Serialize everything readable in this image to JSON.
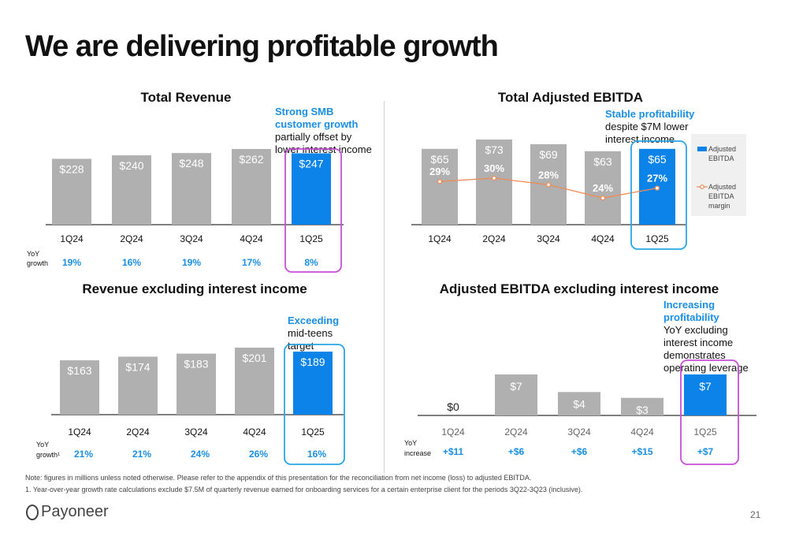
{
  "title": "We are delivering profitable growth",
  "colors": {
    "bar_gray": "#b0b0b0",
    "bar_blue": "#0b83e8",
    "highlight_blue": "#1a8fe3",
    "growth_blue": "#1a8fe3",
    "margin_line": "#f08a54",
    "frame_purple": "#c84fd8",
    "frame_blue": "#2aa6e8"
  },
  "panels": {
    "total_revenue": {
      "title": "Total Revenue",
      "callout": {
        "highlight": "Strong SMB customer growth",
        "rest": " partially offset by lower interest income"
      },
      "growth_label": [
        "YoY",
        "growth"
      ],
      "growth": [
        "19%",
        "16%",
        "19%",
        "17%",
        "8%"
      ]
    },
    "adj_ebitda": {
      "title": "Total Adjusted EBITDA",
      "callout": {
        "highlight": "Stable profitability",
        "rest": " despite $7M lower interest income"
      },
      "legend_bar": "Adjusted EBITDA",
      "legend_line": "Adjusted EBITDA margin"
    },
    "rev_ex_interest": {
      "title": "Revenue excluding interest income",
      "callout": {
        "highlight": "Exceeding",
        "rest": " mid-teens target"
      },
      "growth_label": [
        "YoY",
        "growth¹"
      ],
      "growth": [
        "21%",
        "21%",
        "24%",
        "26%",
        "16%"
      ]
    },
    "ebitda_ex_interest": {
      "title": "Adjusted EBITDA excluding interest income",
      "callout": {
        "highlight": "Increasing profitability",
        "rest": "YoY excluding interest income demonstrates operating leverage"
      },
      "growth_label": [
        "YoY",
        "increase"
      ],
      "growth": [
        "+$11",
        "+$6",
        "+$6",
        "+$15",
        "+$7"
      ]
    }
  },
  "chart_data": [
    {
      "type": "bar",
      "title": "Total Revenue",
      "categories": [
        "1Q24",
        "2Q24",
        "3Q24",
        "4Q24",
        "1Q25"
      ],
      "values": [
        228,
        240,
        248,
        262,
        247
      ],
      "labels": [
        "$228",
        "$240",
        "$248",
        "$262",
        "$247"
      ],
      "highlight_index": 4
    },
    {
      "type": "bar",
      "title": "Total Adjusted EBITDA",
      "categories": [
        "1Q24",
        "2Q24",
        "3Q24",
        "4Q24",
        "1Q25"
      ],
      "values": [
        65,
        73,
        69,
        63,
        65
      ],
      "labels": [
        "$65",
        "$73",
        "$69",
        "$63",
        "$65"
      ],
      "margin_values": [
        29,
        30,
        28,
        24,
        27
      ],
      "margin_labels": [
        "29%",
        "30%",
        "28%",
        "24%",
        "27%"
      ],
      "highlight_index": 4
    },
    {
      "type": "bar",
      "title": "Revenue excluding interest income",
      "categories": [
        "1Q24",
        "2Q24",
        "3Q24",
        "4Q24",
        "1Q25"
      ],
      "values": [
        163,
        174,
        183,
        201,
        189
      ],
      "labels": [
        "$163",
        "$174",
        "$183",
        "$201",
        "$189"
      ],
      "highlight_index": 4
    },
    {
      "type": "bar",
      "title": "Adjusted EBITDA excluding interest income",
      "categories": [
        "1Q24",
        "2Q24",
        "3Q24",
        "4Q24",
        "1Q25"
      ],
      "values": [
        0,
        7,
        4,
        3,
        7
      ],
      "labels": [
        "$0",
        "$7",
        "$4",
        "$3",
        "$7"
      ],
      "highlight_index": 4
    }
  ],
  "footnotes": [
    "Note: figures in millions unless noted otherwise. Please refer to the appendix of this presentation for the reconciliation from net income (loss) to adjusted EBITDA.",
    "1. Year-over-year growth rate calculations exclude $7.5M of quarterly revenue earned for onboarding services for a certain enterprise client for the periods 3Q22-3Q23 (inclusive)."
  ],
  "logo_text": "Payoneer",
  "page_number": "21"
}
